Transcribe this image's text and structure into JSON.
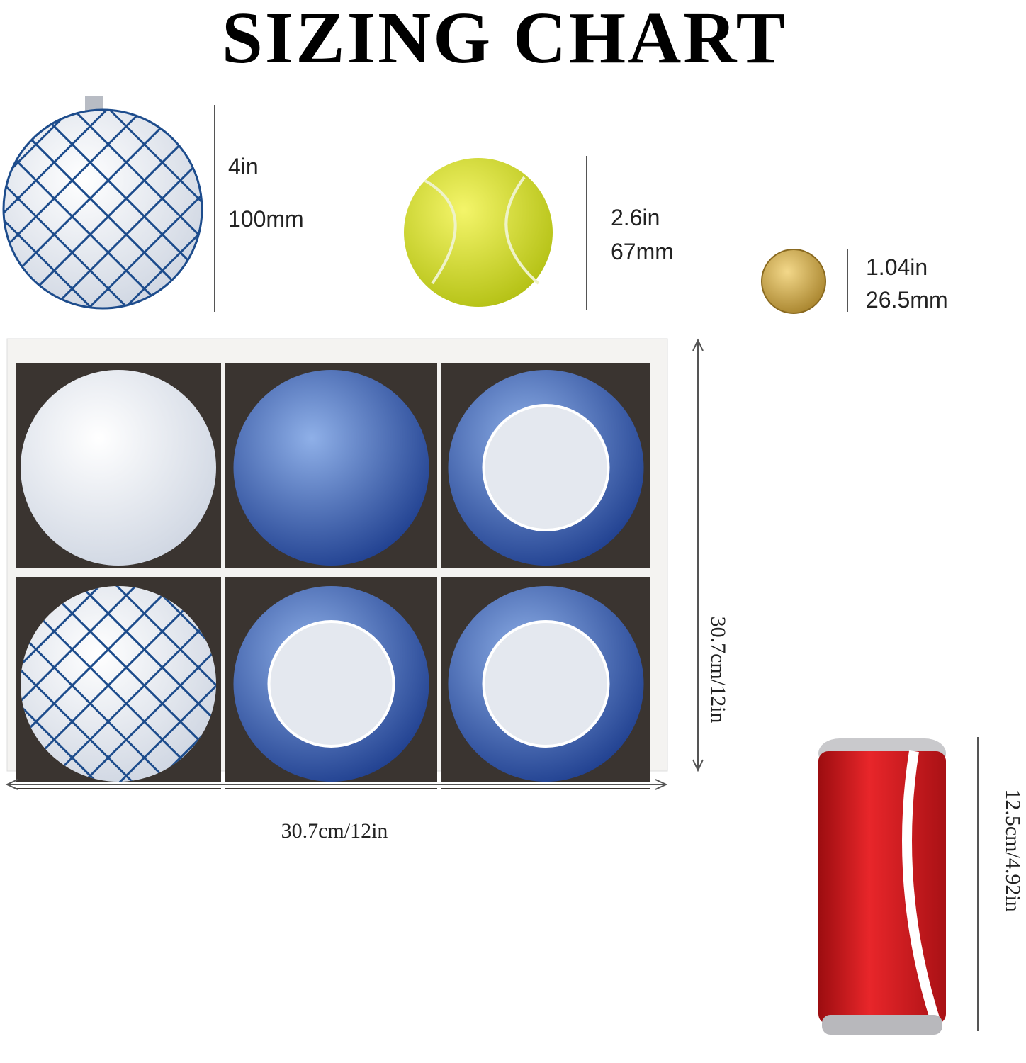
{
  "header": {
    "title": "SIZING CHART"
  },
  "items": [
    {
      "name_line1": "4in",
      "name_line2": "100mm"
    },
    {
      "name_line1": "2.6in",
      "name_line2": "67mm"
    },
    {
      "name_line1": "1.04in",
      "name_line2": "26.5mm"
    }
  ],
  "box": {
    "height_label": "30.7cm/12in",
    "width_label": "30.7cm/12in"
  },
  "can": {
    "height_label": "12.5cm/4.92in"
  }
}
